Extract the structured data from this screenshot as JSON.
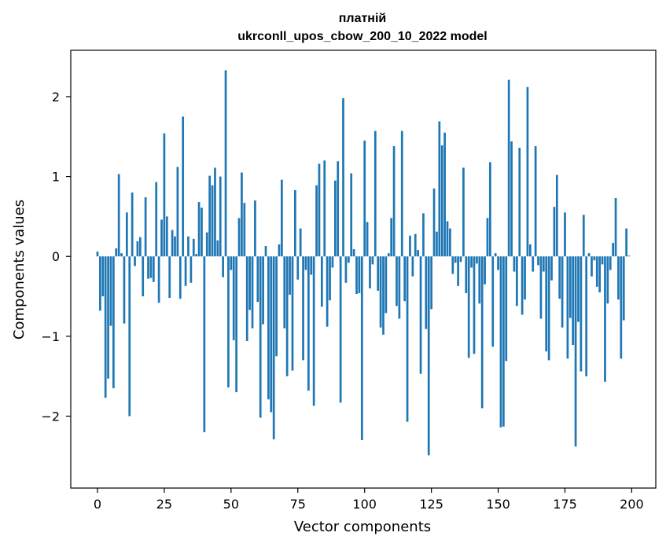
{
  "chart_data": {
    "type": "bar",
    "title_line1": "платній",
    "title_line2": "ukrconll_upos_cbow_200_10_2022 model",
    "xlabel": "Vector components",
    "ylabel": "Components values",
    "xlim": [
      -10,
      209
    ],
    "ylim": [
      -2.9,
      2.58
    ],
    "xticks": [
      0,
      25,
      50,
      75,
      100,
      125,
      150,
      175,
      200
    ],
    "yticks": [
      -2,
      -1,
      0,
      1,
      2
    ],
    "ytick_labels": [
      "−2",
      "−1",
      "0",
      "1",
      "2"
    ],
    "bar_color": "#1f77b4",
    "grid": false,
    "values": [
      0.06,
      -0.68,
      -0.5,
      -1.77,
      -1.53,
      -0.87,
      -1.65,
      0.1,
      1.03,
      0.04,
      -0.84,
      0.55,
      -2.0,
      0.8,
      -0.12,
      0.19,
      0.24,
      -0.5,
      0.74,
      -0.28,
      -0.27,
      -0.32,
      0.93,
      -0.58,
      0.46,
      1.54,
      0.5,
      -0.52,
      0.33,
      0.25,
      1.12,
      -0.53,
      1.75,
      -0.37,
      0.25,
      -0.33,
      0.22,
      0.03,
      0.68,
      0.61,
      -2.2,
      0.3,
      1.01,
      0.89,
      1.11,
      0.2,
      1.0,
      -0.26,
      2.33,
      -1.64,
      -0.17,
      -1.05,
      -1.7,
      0.48,
      1.05,
      0.67,
      -1.06,
      -0.67,
      -0.9,
      0.7,
      -0.57,
      -2.02,
      -0.85,
      0.13,
      -1.79,
      -1.95,
      -2.29,
      -1.25,
      0.15,
      0.96,
      -0.9,
      -1.5,
      -0.48,
      -1.43,
      0.83,
      -0.29,
      0.35,
      -1.3,
      -0.17,
      -1.68,
      -0.23,
      -1.87,
      0.89,
      1.16,
      -0.63,
      1.2,
      -0.88,
      -0.55,
      -0.14,
      0.95,
      1.19,
      -1.83,
      1.98,
      -0.33,
      -0.08,
      1.04,
      0.09,
      -0.47,
      -0.46,
      -2.3,
      1.45,
      0.43,
      -0.4,
      -0.1,
      1.57,
      -0.43,
      -0.89,
      -0.98,
      -0.71,
      0.04,
      0.48,
      1.38,
      -0.62,
      -0.78,
      1.57,
      -0.56,
      -2.07,
      0.26,
      -0.25,
      0.28,
      0.08,
      -1.47,
      0.54,
      -0.91,
      -2.49,
      -0.66,
      0.85,
      0.31,
      1.69,
      1.39,
      1.55,
      0.44,
      0.35,
      -0.22,
      -0.08,
      -0.37,
      -0.07,
      1.11,
      -0.46,
      -1.27,
      -0.14,
      -1.22,
      -0.09,
      -0.59,
      -1.9,
      -0.35,
      0.48,
      1.18,
      -1.13,
      0.04,
      -0.17,
      -2.14,
      -2.13,
      -1.31,
      2.21,
      1.44,
      -0.19,
      -0.62,
      1.36,
      -0.73,
      -0.54,
      2.12,
      0.15,
      -0.19,
      1.38,
      -0.11,
      -0.78,
      -0.19,
      -1.19,
      -1.3,
      -0.3,
      0.62,
      1.02,
      -0.53,
      -0.89,
      0.55,
      -1.28,
      -0.77,
      -1.11,
      -2.38,
      -0.82,
      -1.44,
      0.52,
      -1.5,
      0.04,
      -0.25,
      -0.05,
      -0.38,
      -0.45,
      -0.1,
      -1.57,
      -0.59,
      -0.17,
      0.17,
      0.73,
      -0.54,
      -1.28,
      -0.8,
      0.35,
      0.01
    ]
  }
}
